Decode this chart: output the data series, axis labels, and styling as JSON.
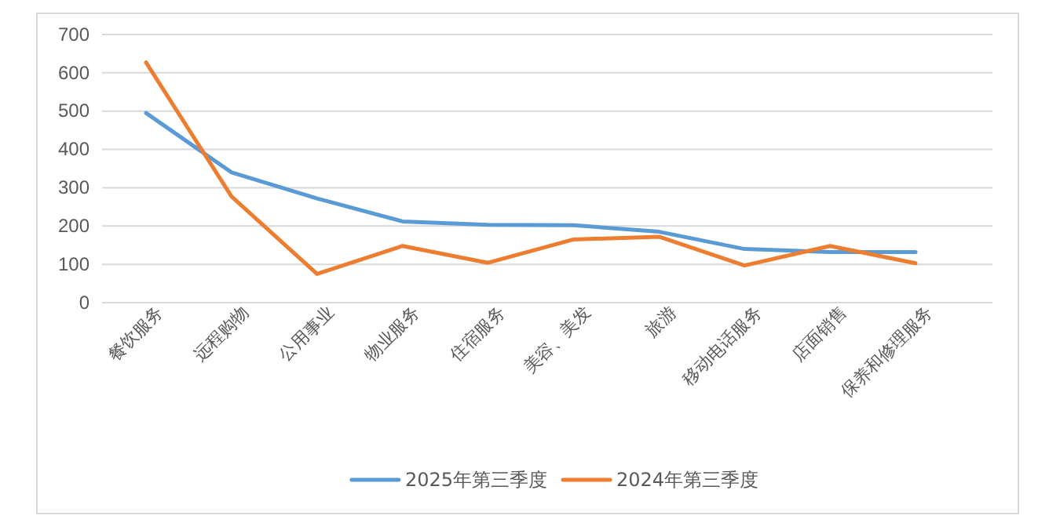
{
  "chart_data": {
    "type": "line",
    "categories": [
      "餐饮服务",
      "远程购物",
      "公用事业",
      "物业服务",
      "住宿服务",
      "美容、美发",
      "旅游",
      "移动电话服务",
      "店面销售",
      "保养和修理服务"
    ],
    "series": [
      {
        "name": "2025年第三季度",
        "color": "#5b9bd5",
        "values": [
          495,
          340,
          272,
          212,
          203,
          202,
          185,
          140,
          132,
          132
        ]
      },
      {
        "name": "2024年第三季度",
        "color": "#ed7d31",
        "values": [
          627,
          277,
          75,
          148,
          104,
          165,
          172,
          97,
          148,
          103
        ]
      }
    ],
    "ylim": [
      0,
      700
    ],
    "yticks": [
      0,
      100,
      200,
      300,
      400,
      500,
      600,
      700
    ],
    "grid": "y",
    "legend": "bottom",
    "marker": "none",
    "line_style": "solid"
  }
}
